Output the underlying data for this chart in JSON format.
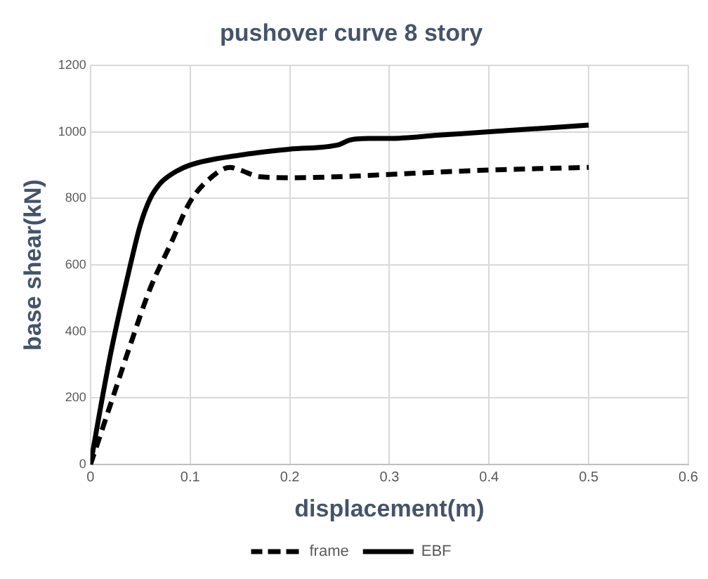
{
  "chart_data": {
    "type": "line",
    "title": "pushover curve 8 story",
    "xlabel": "displacement(m)",
    "ylabel": "base shear(kN)",
    "xlim": [
      0,
      0.6
    ],
    "xticks": [
      0,
      0.1,
      0.2,
      0.3,
      0.4,
      0.5,
      0.6
    ],
    "ylim": [
      0,
      1200
    ],
    "yticks": [
      0,
      200,
      400,
      600,
      800,
      1000,
      1200
    ],
    "grid": true,
    "legend": "bottom",
    "marker": "none",
    "series": [
      {
        "name": "frame",
        "color": "#000000",
        "line_style": "dashed",
        "x": [
          0,
          0.02,
          0.04,
          0.06,
          0.08,
          0.1,
          0.12,
          0.14,
          0.15,
          0.17,
          0.2,
          0.25,
          0.3,
          0.4,
          0.5
        ],
        "values": [
          0,
          180,
          360,
          530,
          660,
          790,
          860,
          893,
          885,
          865,
          862,
          865,
          872,
          885,
          893
        ]
      },
      {
        "name": "EBF",
        "color": "#000000",
        "line_style": "solid",
        "x": [
          0,
          0.01,
          0.02,
          0.03,
          0.04,
          0.05,
          0.06,
          0.07,
          0.08,
          0.1,
          0.15,
          0.2,
          0.25,
          0.26,
          0.28,
          0.3,
          0.35,
          0.4,
          0.5
        ],
        "values": [
          0,
          170,
          330,
          470,
          600,
          720,
          800,
          845,
          870,
          900,
          930,
          948,
          962,
          975,
          980,
          980,
          990,
          1000,
          1020
        ]
      }
    ]
  }
}
